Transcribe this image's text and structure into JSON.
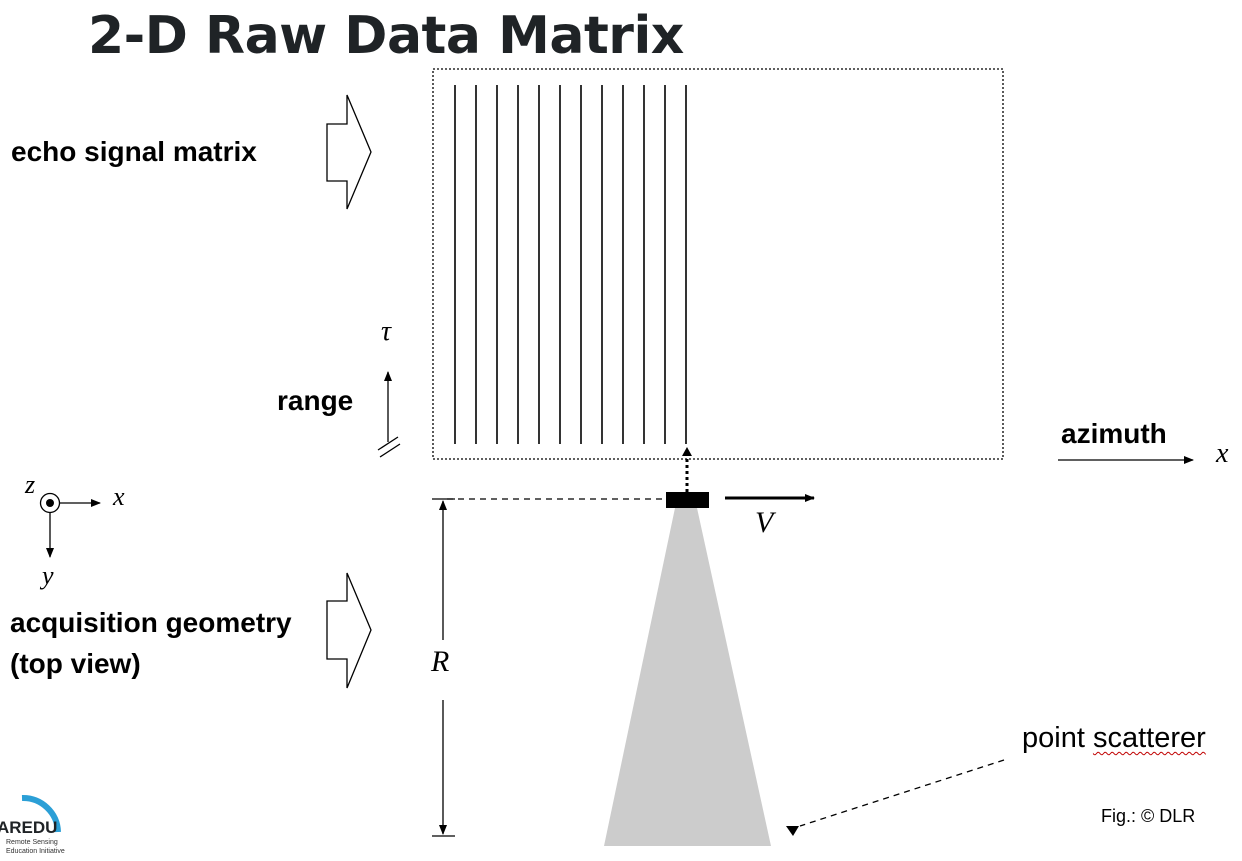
{
  "title": "2-D Raw Data Matrix",
  "labels": {
    "echo_signal_matrix": "echo signal matrix",
    "range": "range",
    "azimuth": "azimuth",
    "acquisition_line1": "acquisition geometry",
    "acquisition_line2": "(top view)",
    "point_scatterer_prefix": "point ",
    "point_scatterer_word": "scatterer",
    "credit": "Fig.: © DLR"
  },
  "symbols": {
    "tau": "τ",
    "x_axis": "x",
    "coord_z": "z",
    "coord_x": "x",
    "coord_y": "y",
    "velocity": "V",
    "distance": "R"
  },
  "logo": {
    "text_big": "AREDU",
    "text_small1": "Remote Sensing",
    "text_small2": "Education Initiative",
    "color": "#2b9fd6"
  },
  "echo_line_count": 12,
  "colors": {
    "beam": "#cccccc",
    "title": "#1f2326"
  }
}
